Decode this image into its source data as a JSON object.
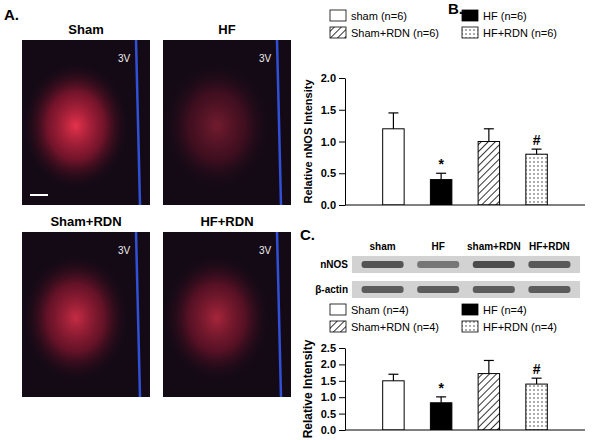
{
  "panel_labels": [
    "A.",
    "B.",
    "C."
  ],
  "panel_a": {
    "images": [
      {
        "title": "Sham",
        "label": "3V"
      },
      {
        "title": "HF",
        "label": "3V"
      },
      {
        "title": "Sham+RDN",
        "label": "3V"
      },
      {
        "title": "HF+RDN",
        "label": "3V"
      }
    ]
  },
  "blot": {
    "lanes": [
      "sham",
      "HF",
      "sham+RDN",
      "HF+RDN"
    ],
    "bands": [
      "nNOS",
      "β-actin"
    ]
  },
  "chart_data": [
    {
      "type": "bar",
      "y_label": "Relative nNOS Intensity",
      "categories": [
        null
      ],
      "ylim": [
        0,
        2
      ],
      "yticks": [
        {
          "value": 0,
          "label": "0.0"
        },
        {
          "value": 0.5,
          "label": "0.5"
        },
        {
          "value": 1,
          "label": "1.0"
        },
        {
          "value": 1.5,
          "label": "1.5"
        },
        {
          "value": 2,
          "label": "2.0"
        }
      ],
      "legend": "top",
      "series": [
        {
          "name": "sham (n=6)",
          "color": "#ffffff",
          "marker": "solid",
          "values": [
            1.2
          ],
          "errors": [
            0.25
          ]
        },
        {
          "name": "HF (n=6)",
          "color": "#000000",
          "marker": "solid",
          "values": [
            0.4
          ],
          "errors": [
            0.1
          ],
          "annotation": "*"
        },
        {
          "name": "Sham+RDN (n=6)",
          "color": "#ffffff",
          "marker": "hatch",
          "values": [
            1.0
          ],
          "errors": [
            0.2
          ]
        },
        {
          "name": "HF+RDN (n=6)",
          "color": "#ffffff",
          "marker": "dots",
          "values": [
            0.8
          ],
          "errors": [
            0.08
          ],
          "annotation": "#"
        }
      ]
    },
    {
      "type": "bar",
      "y_label": "Relative Intensity",
      "categories": [
        null
      ],
      "ylim": [
        0,
        2.5
      ],
      "yticks": [
        {
          "value": 0,
          "label": "0.0"
        },
        {
          "value": 0.5,
          "label": "0.5"
        },
        {
          "value": 1,
          "label": "1.0"
        },
        {
          "value": 1.5,
          "label": "1.5"
        },
        {
          "value": 2,
          "label": "2.0"
        },
        {
          "value": 2.5,
          "label": "2.5"
        }
      ],
      "legend": "top",
      "series": [
        {
          "name": "Sham (n=4)",
          "color": "#ffffff",
          "marker": "solid",
          "values": [
            1.5
          ],
          "errors": [
            0.2
          ]
        },
        {
          "name": "HF (n=4)",
          "color": "#000000",
          "marker": "solid",
          "values": [
            0.83
          ],
          "errors": [
            0.18
          ],
          "annotation": "*"
        },
        {
          "name": "Sham+RDN (n=4)",
          "color": "#ffffff",
          "marker": "hatch",
          "values": [
            1.72
          ],
          "errors": [
            0.4
          ]
        },
        {
          "name": "HF+RDN (n=4)",
          "color": "#ffffff",
          "marker": "dots",
          "values": [
            1.4
          ],
          "errors": [
            0.18
          ],
          "annotation": "#"
        }
      ]
    }
  ]
}
